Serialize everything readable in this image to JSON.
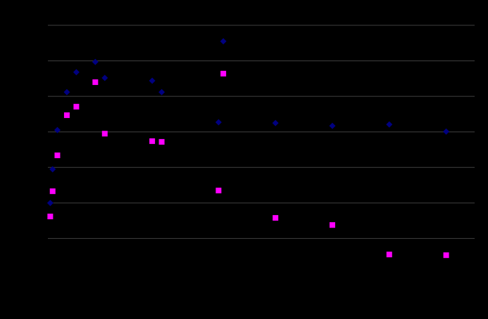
{
  "chart_data": {
    "type": "scatter",
    "xlim": [
      0,
      90
    ],
    "ylim": [
      0,
      7
    ],
    "yticks": [
      1,
      2,
      3,
      4,
      5,
      6,
      7
    ],
    "grid": true,
    "series": [
      {
        "color": "#000080",
        "marker": "diamond",
        "x": [
          0.5,
          1,
          2,
          4,
          6,
          10,
          12,
          22,
          24,
          36,
          37,
          48,
          60,
          72,
          84
        ],
        "values": [
          2.0,
          2.95,
          4.05,
          5.12,
          5.68,
          5.97,
          5.52,
          5.44,
          5.12,
          4.27,
          6.55,
          4.25,
          4.17,
          4.21,
          4.01
        ]
      },
      {
        "color": "#ff00ff",
        "marker": "square",
        "x": [
          0.5,
          1,
          2,
          4,
          6,
          10,
          12,
          22,
          24,
          36,
          37,
          48,
          60,
          72,
          84
        ],
        "values": [
          1.62,
          2.33,
          3.34,
          4.47,
          4.71,
          5.4,
          3.95,
          3.74,
          3.72,
          2.35,
          5.64,
          1.58,
          1.38,
          0.55,
          0.53
        ]
      }
    ]
  }
}
